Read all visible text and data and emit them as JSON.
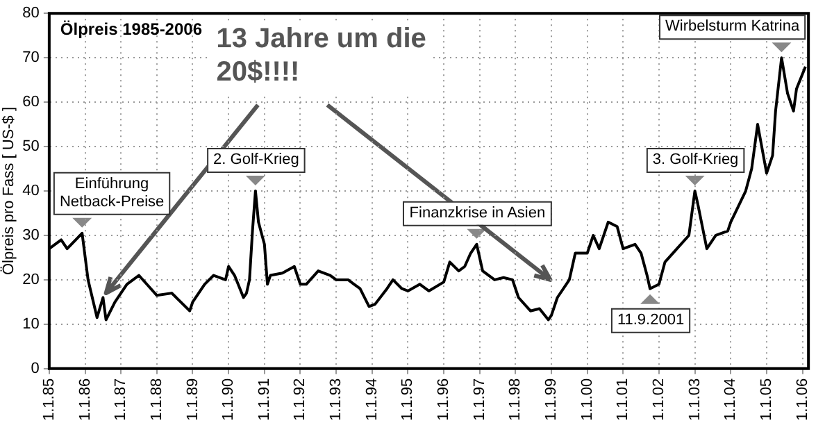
{
  "chart_data": {
    "type": "line",
    "title": "Ölpreis 1985-2006",
    "ylabel": "Ölpreis pro Fass [ US-$ ]",
    "x": [
      "1985-01",
      "1985-05",
      "1985-07",
      "1985-12",
      "1986-02",
      "1986-05",
      "1986-07",
      "1986-08",
      "1986-11",
      "1987-01",
      "1987-03",
      "1987-07",
      "1987-11",
      "1988-01",
      "1988-06",
      "1988-09",
      "1988-12",
      "1989-01",
      "1989-05",
      "1989-08",
      "1989-12",
      "1990-01",
      "1990-03",
      "1990-06",
      "1990-07",
      "1990-08",
      "1990-09",
      "1990-10",
      "1990-11",
      "1991-01",
      "1991-02",
      "1991-03",
      "1991-07",
      "1991-11",
      "1992-01",
      "1992-03",
      "1992-07",
      "1992-11",
      "1993-01",
      "1993-05",
      "1993-09",
      "1993-12",
      "1994-02",
      "1994-06",
      "1994-08",
      "1994-11",
      "1995-01",
      "1995-05",
      "1995-08",
      "1996-01",
      "1996-03",
      "1996-06",
      "1996-08",
      "1996-10",
      "1996-12",
      "1997-02",
      "1997-06",
      "1997-09",
      "1997-12",
      "1998-02",
      "1998-06",
      "1998-09",
      "1998-12",
      "1999-01",
      "1999-03",
      "1999-07",
      "1999-09",
      "2000-01",
      "2000-03",
      "2000-05",
      "2000-08",
      "2000-11",
      "2001-01",
      "2001-05",
      "2001-07",
      "2001-09",
      "2001-10",
      "2002-01",
      "2002-03",
      "2002-07",
      "2002-11",
      "2003-01",
      "2003-02",
      "2003-05",
      "2003-08",
      "2003-12",
      "2004-01",
      "2004-06",
      "2004-08",
      "2004-10",
      "2005-01",
      "2005-03",
      "2005-04",
      "2005-06",
      "2005-08",
      "2005-10",
      "2005-11",
      "2006-02"
    ],
    "values": [
      27,
      29,
      27,
      30.5,
      20,
      11.5,
      16,
      11,
      15,
      17,
      19,
      21,
      18,
      16.5,
      17,
      15,
      13,
      15,
      19,
      21,
      20,
      23,
      21,
      16,
      17,
      20,
      31,
      40,
      33,
      28,
      19,
      21,
      21.5,
      23,
      19,
      19,
      22,
      21,
      20,
      20,
      18,
      14,
      14.5,
      18,
      20,
      18,
      17.5,
      19,
      17.5,
      19.5,
      24,
      22,
      23,
      26,
      28,
      22,
      20,
      20.5,
      20,
      16,
      13,
      13.5,
      11,
      12,
      16,
      20,
      26,
      26,
      30,
      27,
      33,
      32,
      27,
      28,
      26,
      21,
      18,
      19,
      24,
      27,
      30,
      40,
      37,
      27,
      30,
      31,
      33,
      40,
      45,
      55,
      44,
      48,
      58,
      70,
      62,
      58,
      63,
      68
    ],
    "color": "#000000",
    "xlim": [
      "1985-01",
      "2006-03"
    ],
    "ylim": [
      0,
      80
    ],
    "xticks": [
      {
        "value": "1985-01-01",
        "label": "1.1.85"
      },
      {
        "value": "1986-01-01",
        "label": "1.1.86"
      },
      {
        "value": "1987-01-01",
        "label": "1.1.87"
      },
      {
        "value": "1988-01-01",
        "label": "1.1.88"
      },
      {
        "value": "1989-01-01",
        "label": "1.1.89"
      },
      {
        "value": "1990-01-01",
        "label": "1.1.90"
      },
      {
        "value": "1991-01-01",
        "label": "1.1.91"
      },
      {
        "value": "1992-01-01",
        "label": "1.1.92"
      },
      {
        "value": "1993-01-01",
        "label": "1.1.93"
      },
      {
        "value": "1994-01-01",
        "label": "1.1.94"
      },
      {
        "value": "1995-01-01",
        "label": "1.1.95"
      },
      {
        "value": "1996-01-01",
        "label": "1.1.96"
      },
      {
        "value": "1997-01-01",
        "label": "1.1.97"
      },
      {
        "value": "1998-01-01",
        "label": "1.1.98"
      },
      {
        "value": "1999-01-01",
        "label": "1.1.99"
      },
      {
        "value": "2000-01-01",
        "label": "1.1.00"
      },
      {
        "value": "2001-01-01",
        "label": "1.1.01"
      },
      {
        "value": "2002-01-01",
        "label": "1.1.02"
      },
      {
        "value": "2003-01-01",
        "label": "1.1.03"
      },
      {
        "value": "2004-01-01",
        "label": "1.1.04"
      },
      {
        "value": "2005-01-01",
        "label": "1.1.05"
      },
      {
        "value": "2006-01-01",
        "label": "1.1.06"
      }
    ],
    "yticks": [
      0,
      10,
      20,
      30,
      40,
      50,
      60,
      70,
      80
    ],
    "grid": true,
    "legend": false,
    "marker": "none",
    "line_style": "solid",
    "annotations": [
      {
        "text": "Einführung\nNetback-Preise",
        "x": "1985-12",
        "y": 30.5
      },
      {
        "text": "2. Golf-Krieg",
        "x": "1990-10",
        "y": 40
      },
      {
        "text": "Finanzkrise in Asien",
        "x": "1996-12",
        "y": 28
      },
      {
        "text": "11.9.2001",
        "x": "2001-10",
        "y": 18
      },
      {
        "text": "3. Golf-Krieg",
        "x": "2003-01",
        "y": 40
      },
      {
        "text": "Wirbelsturm Katrina",
        "x": "2005-06",
        "y": 70
      },
      {
        "text": "13 Jahre um die 20$!!!!",
        "x": "1986-08",
        "y": 17
      }
    ]
  }
}
